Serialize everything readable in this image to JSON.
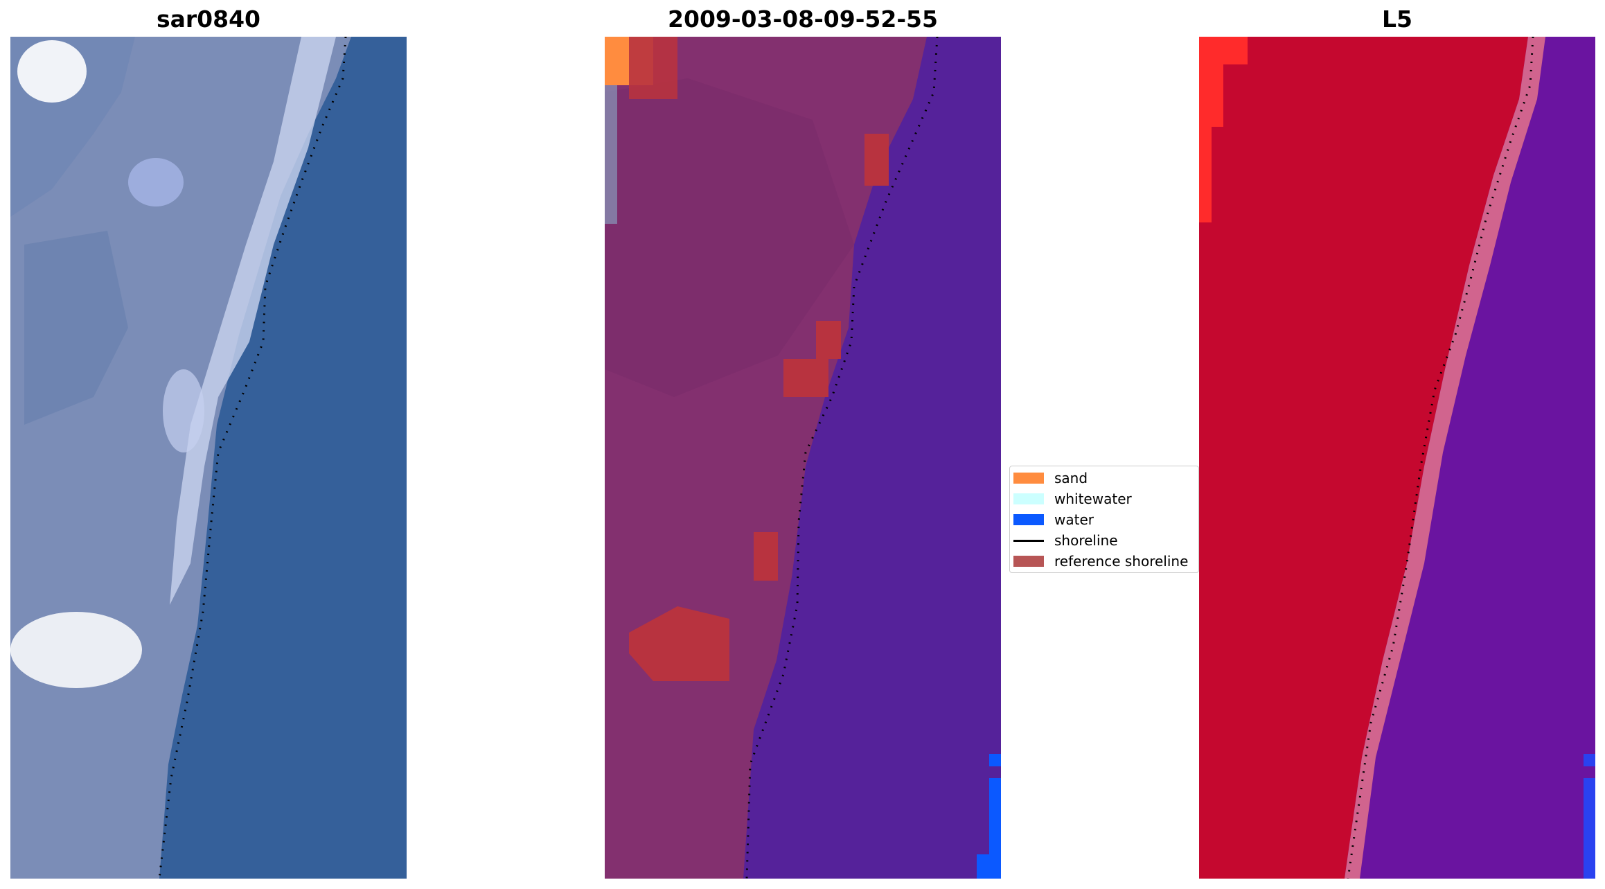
{
  "panels": [
    {
      "title": "sar0840",
      "kind": "rgb"
    },
    {
      "title": "2009-03-08-09-52-55",
      "kind": "classified"
    },
    {
      "title": "L5",
      "kind": "mndwi"
    }
  ],
  "legend": {
    "items": [
      {
        "label": "sand",
        "color": "#ff8c3f",
        "type": "patch"
      },
      {
        "label": "whitewater",
        "color": "#ccffff",
        "type": "patch"
      },
      {
        "label": "water",
        "color": "#0b59ff",
        "type": "patch"
      },
      {
        "label": "shoreline",
        "color": "#000000",
        "type": "line"
      },
      {
        "label": "reference shoreline",
        "color": "#a52a2a",
        "type": "patch"
      }
    ]
  },
  "colors": {
    "rgb_land": "#7b8db7",
    "rgb_water": "#35609a",
    "rgb_surf": "#c9d3ee",
    "class_land": "#83306f",
    "class_water": "#55229a",
    "class_ref": "#b8333f",
    "mndwi_land": "#c5082f",
    "mndwi_water": "#6a14a0",
    "mndwi_edge": "#d1648e"
  }
}
